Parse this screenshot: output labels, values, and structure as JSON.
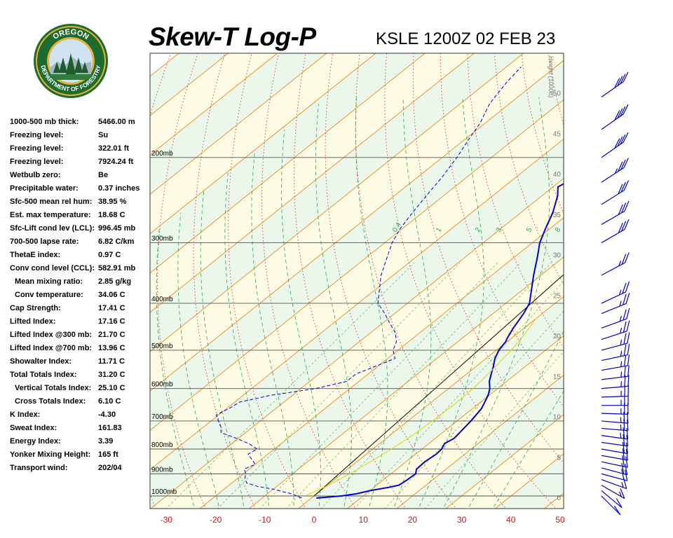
{
  "header": {
    "title": "Skew-T Log-P",
    "station_time": "KSLE 1200Z 02 FEB 23"
  },
  "logo": {
    "top_text": "OREGON",
    "bottom_text": "DEPARTMENT OF FORESTRY",
    "colors": {
      "ring": "#1f6b2e",
      "gold": "#e2b23a",
      "sky": "#cfe2f1",
      "trees": "#1e5c2a"
    }
  },
  "stats": [
    {
      "label": "1000-500 mb thick:",
      "value": "5466.00 m",
      "indent": false
    },
    {
      "label": "Freezing level:",
      "value": "Su",
      "indent": false
    },
    {
      "label": "Freezing level:",
      "value": "322.01 ft",
      "indent": false
    },
    {
      "label": "Freezing level:",
      "value": "7924.24 ft",
      "indent": false
    },
    {
      "label": "Wetbulb zero:",
      "value": "Be",
      "indent": false
    },
    {
      "label": "Precipitable water:",
      "value": "0.37 inches",
      "indent": false
    },
    {
      "label": "Sfc-500 mean rel hum:",
      "value": "38.95 %",
      "indent": false
    },
    {
      "label": "Est. max temperature:",
      "value": "18.68 C",
      "indent": false
    },
    {
      "label": "Sfc-Lift cond lev (LCL):",
      "value": "996.45 mb",
      "indent": false
    },
    {
      "label": "700-500 lapse rate:",
      "value": "6.82 C/km",
      "indent": false
    },
    {
      "label": "ThetaE index:",
      "value": "0.97 C",
      "indent": false
    },
    {
      "label": "Conv cond level (CCL):",
      "value": "582.91 mb",
      "indent": false
    },
    {
      "label": "Mean mixing ratio:",
      "value": "2.85 g/kg",
      "indent": true
    },
    {
      "label": "Conv temperature:",
      "value": "34.06 C",
      "indent": true
    },
    {
      "label": "Cap Strength:",
      "value": "17.41 C",
      "indent": false
    },
    {
      "label": "Lifted Index:",
      "value": "17.16 C",
      "indent": false
    },
    {
      "label": "Lifted Index @300 mb:",
      "value": "21.70 C",
      "indent": false
    },
    {
      "label": "Lifted Index @700 mb:",
      "value": "13.96 C",
      "indent": false
    },
    {
      "label": "Showalter Index:",
      "value": "11.71 C",
      "indent": false
    },
    {
      "label": "Total Totals Index:",
      "value": "31.20 C",
      "indent": false
    },
    {
      "label": "Vertical Totals Index:",
      "value": "25.10 C",
      "indent": true
    },
    {
      "label": "Cross Totals Index:",
      "value": "6.10 C",
      "indent": true
    },
    {
      "label": "K Index:",
      "value": "-4.30",
      "indent": false
    },
    {
      "label": "Sweat Index:",
      "value": "161.83",
      "indent": false
    },
    {
      "label": "Energy Index:",
      "value": "3.39",
      "indent": false
    },
    {
      "label": "Yonker Mixing Height:",
      "value": "165 ft",
      "indent": false
    },
    {
      "label": "Transport wind:",
      "value": "202/04",
      "indent": false
    }
  ],
  "chart_data": {
    "type": "line",
    "diagram": "skew-t log-p",
    "x_ticks": [
      -30,
      -20,
      -10,
      0,
      10,
      20,
      30,
      40,
      50
    ],
    "x_tick_labels": [
      "-30",
      "-20",
      "-10",
      "0",
      "10",
      "20",
      "30",
      "40",
      "50"
    ],
    "xlim": [
      -33,
      50
    ],
    "pressure_levels": [
      200,
      300,
      400,
      500,
      600,
      700,
      800,
      900,
      1000
    ],
    "pressure_labels": [
      "200mb",
      "300mb",
      "400mb",
      "500mb",
      "600mb",
      "700mb",
      "800mb",
      "900mb",
      "1000mb"
    ],
    "height_axis_label": "Height (1000ft)",
    "height_ticks": [
      0,
      5,
      10,
      15,
      20,
      25,
      30,
      35,
      40,
      45,
      50
    ],
    "height_tick_labels": [
      "0",
      "5",
      "10",
      "15",
      "20",
      "25",
      "30",
      "35",
      "40",
      "45",
      "50"
    ],
    "mixing_ratio_labels": [
      "0.4",
      "1",
      "2",
      "3",
      "5",
      "8"
    ],
    "series": [
      {
        "role": "temperature",
        "color": "#0000c8",
        "points": [
          [
            1010,
            1.0
          ],
          [
            1000,
            5.5
          ],
          [
            990,
            8.0
          ],
          [
            975,
            10.0
          ],
          [
            960,
            13.0
          ],
          [
            950,
            14.5
          ],
          [
            930,
            14.8
          ],
          [
            900,
            15.0
          ],
          [
            880,
            14.0
          ],
          [
            850,
            13.8
          ],
          [
            820,
            14.2
          ],
          [
            800,
            14.0
          ],
          [
            780,
            13.2
          ],
          [
            760,
            13.8
          ],
          [
            740,
            13.5
          ],
          [
            700,
            12.8
          ],
          [
            660,
            11.8
          ],
          [
            620,
            9.8
          ],
          [
            600,
            8.4
          ],
          [
            580,
            6.5
          ],
          [
            560,
            5.0
          ],
          [
            540,
            3.5
          ],
          [
            520,
            1.8
          ],
          [
            500,
            0.5
          ],
          [
            480,
            -0.3
          ],
          [
            470,
            -1.0
          ],
          [
            450,
            -2.2
          ],
          [
            420,
            -3.8
          ],
          [
            400,
            -5.2
          ],
          [
            350,
            -11.5
          ],
          [
            320,
            -15.5
          ],
          [
            300,
            -18.5
          ],
          [
            280,
            -21.0
          ],
          [
            260,
            -23.5
          ],
          [
            240,
            -26.8
          ],
          [
            230,
            -29.0
          ],
          [
            220,
            -27.8
          ],
          [
            210,
            -25.0
          ],
          [
            200,
            -21.0
          ],
          [
            185,
            -12.0
          ],
          [
            170,
            -3.0
          ],
          [
            165,
            0.0
          ],
          [
            160,
            3.5
          ],
          [
            155,
            7.5
          ]
        ]
      },
      {
        "role": "dewpoint",
        "color": "#0000c8",
        "points": [
          [
            1010,
            -2.0
          ],
          [
            1000,
            -3.5
          ],
          [
            990,
            -5.0
          ],
          [
            980,
            -7.5
          ],
          [
            970,
            -9.5
          ],
          [
            955,
            -14.0
          ],
          [
            940,
            -17.0
          ],
          [
            920,
            -18.5
          ],
          [
            900,
            -19.5
          ],
          [
            880,
            -21.0
          ],
          [
            860,
            -20.0
          ],
          [
            840,
            -22.0
          ],
          [
            820,
            -24.0
          ],
          [
            800,
            -23.5
          ],
          [
            780,
            -26.5
          ],
          [
            760,
            -30.5
          ],
          [
            740,
            -35.0
          ],
          [
            720,
            -36.5
          ],
          [
            700,
            -38.5
          ],
          [
            680,
            -40.5
          ],
          [
            660,
            -39.5
          ],
          [
            640,
            -39.0
          ],
          [
            620,
            -34.5
          ],
          [
            600,
            -27.0
          ],
          [
            580,
            -22.5
          ],
          [
            560,
            -22.5
          ],
          [
            540,
            -20.5
          ],
          [
            520,
            -18.5
          ],
          [
            500,
            -21.0
          ],
          [
            480,
            -22.5
          ],
          [
            460,
            -25.0
          ],
          [
            440,
            -28.5
          ],
          [
            420,
            -32.0
          ],
          [
            400,
            -36.0
          ],
          [
            380,
            -38.5
          ],
          [
            350,
            -42.5
          ],
          [
            320,
            -46.0
          ],
          [
            300,
            -48.5
          ],
          [
            280,
            -50.5
          ],
          [
            260,
            -52.0
          ],
          [
            240,
            -53.5
          ],
          [
            220,
            -55.0
          ],
          [
            200,
            -57.0
          ],
          [
            185,
            -59.0
          ],
          [
            170,
            -61.0
          ],
          [
            155,
            -64.0
          ],
          [
            140,
            -66.0
          ],
          [
            130,
            -67.0
          ]
        ]
      },
      {
        "role": "parcel",
        "color": "#e6d200",
        "points": [
          [
            996,
            -1.8
          ],
          [
            980,
            -1.0
          ],
          [
            950,
            0.2
          ],
          [
            900,
            1.6
          ],
          [
            850,
            2.8
          ],
          [
            800,
            3.8
          ],
          [
            750,
            4.6
          ],
          [
            700,
            5.0
          ],
          [
            650,
            5.2
          ],
          [
            600,
            5.0
          ],
          [
            550,
            4.2
          ],
          [
            500,
            3.0
          ],
          [
            460,
            1.5
          ],
          [
            430,
            0.0
          ]
        ]
      }
    ],
    "wind_barbs": [
      [
        1000,
        10,
        225
      ],
      [
        975,
        12,
        230
      ],
      [
        950,
        15,
        240
      ],
      [
        925,
        18,
        250
      ],
      [
        900,
        20,
        255
      ],
      [
        875,
        20,
        255
      ],
      [
        850,
        20,
        258
      ],
      [
        825,
        22,
        260
      ],
      [
        800,
        22,
        260
      ],
      [
        775,
        22,
        262
      ],
      [
        750,
        25,
        262
      ],
      [
        725,
        25,
        265
      ],
      [
        700,
        25,
        265
      ],
      [
        675,
        25,
        268
      ],
      [
        650,
        25,
        270
      ],
      [
        625,
        25,
        272
      ],
      [
        600,
        25,
        275
      ],
      [
        575,
        25,
        277
      ],
      [
        550,
        25,
        280
      ],
      [
        525,
        25,
        282
      ],
      [
        500,
        25,
        285
      ],
      [
        475,
        25,
        288
      ],
      [
        450,
        25,
        290
      ],
      [
        420,
        25,
        292
      ],
      [
        400,
        25,
        295
      ],
      [
        350,
        25,
        298
      ],
      [
        300,
        30,
        300
      ],
      [
        275,
        30,
        300
      ],
      [
        250,
        30,
        302
      ],
      [
        225,
        35,
        303
      ],
      [
        200,
        40,
        305
      ],
      [
        175,
        40,
        305
      ],
      [
        150,
        40,
        305
      ]
    ]
  }
}
